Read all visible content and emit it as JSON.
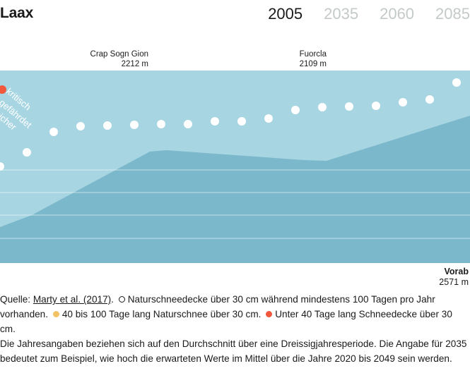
{
  "header": {
    "title": "Laax",
    "years": [
      "2005",
      "2035",
      "2060",
      "2085"
    ],
    "active_year": "2005"
  },
  "passes": [
    {
      "name": "Crap Sogn Gion",
      "elevation": "2212 m"
    },
    {
      "name": "Fuorcla",
      "elevation": "2109 m"
    }
  ],
  "endpoint": {
    "name": "Vorab",
    "elevation": "2571 m"
  },
  "chart": {
    "zone_label": [
      "kritisch",
      "gefährdet",
      "sicher"
    ],
    "colors": {
      "dark": "#7bb8cb",
      "light": "#a8d5e2",
      "dot": "#ffffff",
      "red": "#f0573b",
      "yellow": "#f2c364"
    }
  },
  "caption": {
    "source_prefix": "Quelle: ",
    "source_link": "Marty et al. (2017)",
    "legend_white": "Naturschneedecke über 30 cm während mindestens 100 Tagen pro Jahr vorhanden.",
    "legend_yellow": "40 bis 100 Tage lang Naturschnee über 30 cm.",
    "legend_red": "Unter 40 Tage lang Schneedecke über 30 cm.",
    "note": "Die Jahresangaben beziehen sich auf den Durchschnitt über eine Dreissigjahresperiode. Die Angabe für 2035 bedeutet zum Beispiel, wie hoch die erwarteten Werte im Mittel über die Jahre 2020 bis 2049 sein werden."
  }
}
